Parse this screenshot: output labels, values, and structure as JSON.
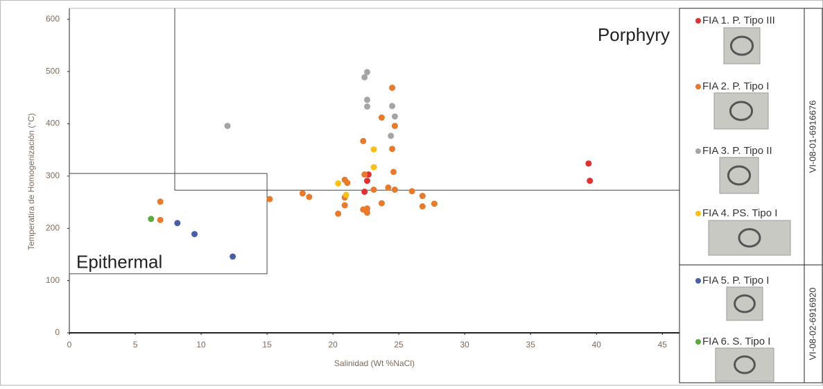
{
  "chart_data": {
    "type": "scatter",
    "xlabel": "Salinidad (Wt %NaCl)",
    "ylabel": "Temperatira de Homogenización (°C)",
    "xlim": [
      0,
      46.3
    ],
    "ylim": [
      0,
      621
    ],
    "xticks": [
      0,
      5,
      10,
      15,
      20,
      25,
      30,
      35,
      40,
      45
    ],
    "yticks": [
      0,
      100,
      200,
      300,
      400,
      500,
      600
    ],
    "grid": false,
    "regions": [
      {
        "label": "Epithermal",
        "x_min": 0,
        "x_max": 15,
        "y_min": 113,
        "y_max": 305
      },
      {
        "label": "Porphyry",
        "x_min": 8,
        "y_min": 273
      }
    ],
    "samples": [
      "VI-08-01-6916676",
      "VI-08-02-6916920"
    ],
    "series": [
      {
        "name": "FIA 1. P. Tipo III",
        "color": "#e03030",
        "x": [
          39.4,
          39.5,
          22.7,
          22.6,
          22.4
        ],
        "values": [
          324,
          291,
          303,
          291,
          270
        ]
      },
      {
        "name": "FIA 2. P. Tipo I",
        "color": "#e87a2c",
        "x": [
          6.9,
          6.9,
          15.2,
          17.7,
          18.2,
          20.4,
          20.9,
          21.1,
          20.9,
          20.9,
          22.3,
          22.4,
          22.3,
          22.6,
          22.6,
          23.1,
          23.7,
          23.7,
          24.2,
          24.5,
          24.5,
          24.7,
          24.6,
          24.7,
          26.0,
          26.8,
          26.8,
          27.7
        ],
        "values": [
          251,
          216,
          256,
          267,
          260,
          228,
          293,
          287,
          259,
          244,
          367,
          303,
          236,
          238,
          230,
          274,
          412,
          248,
          278,
          469,
          352,
          396,
          308,
          274,
          271,
          262,
          242,
          247
        ]
      },
      {
        "name": "FIA 3. P. Tipo II",
        "color": "#a5a5a5",
        "x": [
          12.0,
          22.6,
          22.4,
          22.6,
          22.6,
          24.5,
          24.7,
          24.4
        ],
        "values": [
          396,
          499,
          489,
          446,
          433,
          434,
          414,
          377
        ]
      },
      {
        "name": "FIA 4. PS. Tipo I",
        "color": "#fbbf1c",
        "x": [
          23.1,
          23.1,
          20.4,
          21.0
        ],
        "values": [
          351,
          317,
          286,
          264
        ]
      },
      {
        "name": "FIA 5. P. Tipo I",
        "color": "#4a5ea8",
        "x": [
          8.2,
          9.5,
          12.4
        ],
        "values": [
          210,
          189,
          146
        ]
      },
      {
        "name": "FIA 6. S. Tipo I",
        "color": "#5aab3c",
        "x": [
          6.2
        ],
        "values": [
          218
        ]
      }
    ]
  }
}
